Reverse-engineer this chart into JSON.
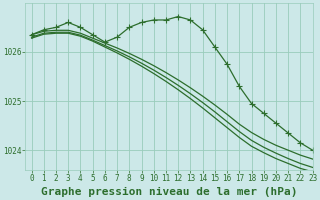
{
  "background_color": "#cce8e8",
  "grid_color": "#99ccbb",
  "line_color": "#2d6e2d",
  "marker_color": "#2d6e2d",
  "title": "Graphe pression niveau de la mer (hPa)",
  "xlim": [
    -0.5,
    23
  ],
  "ylim": [
    1023.6,
    1027.0
  ],
  "yticks": [
    1024,
    1025,
    1026
  ],
  "xticks": [
    0,
    1,
    2,
    3,
    4,
    5,
    6,
    7,
    8,
    9,
    10,
    11,
    12,
    13,
    14,
    15,
    16,
    17,
    18,
    19,
    20,
    21,
    22,
    23
  ],
  "series": [
    [
      1026.35,
      1026.45,
      1026.5,
      1026.6,
      1026.5,
      1026.35,
      1026.2,
      1026.3,
      1026.5,
      1026.6,
      1026.65,
      1026.65,
      1026.72,
      1026.65,
      1026.45,
      1026.1,
      1025.75,
      1025.3,
      1024.95,
      1024.75,
      1024.55,
      1024.35,
      1024.15,
      1024.0
    ],
    [
      1026.35,
      1026.42,
      1026.44,
      1026.44,
      1026.38,
      1026.28,
      1026.18,
      1026.08,
      1025.97,
      1025.85,
      1025.72,
      1025.58,
      1025.43,
      1025.27,
      1025.1,
      1024.92,
      1024.73,
      1024.53,
      1024.36,
      1024.22,
      1024.1,
      1024.0,
      1023.9,
      1023.82
    ],
    [
      1026.3,
      1026.38,
      1026.4,
      1026.4,
      1026.34,
      1026.24,
      1026.13,
      1026.02,
      1025.9,
      1025.77,
      1025.63,
      1025.48,
      1025.32,
      1025.15,
      1024.97,
      1024.78,
      1024.58,
      1024.38,
      1024.2,
      1024.06,
      1023.94,
      1023.83,
      1023.73,
      1023.65
    ],
    [
      1026.28,
      1026.36,
      1026.38,
      1026.38,
      1026.32,
      1026.22,
      1026.1,
      1025.98,
      1025.85,
      1025.71,
      1025.56,
      1025.4,
      1025.23,
      1025.05,
      1024.86,
      1024.66,
      1024.46,
      1024.26,
      1024.08,
      1023.95,
      1023.83,
      1023.73,
      1023.63,
      1023.56
    ]
  ],
  "has_markers": [
    true,
    false,
    false,
    false
  ],
  "marker_style": "+",
  "marker_size": 4,
  "line_width": 0.9,
  "title_fontsize": 8,
  "tick_fontsize": 5.5
}
